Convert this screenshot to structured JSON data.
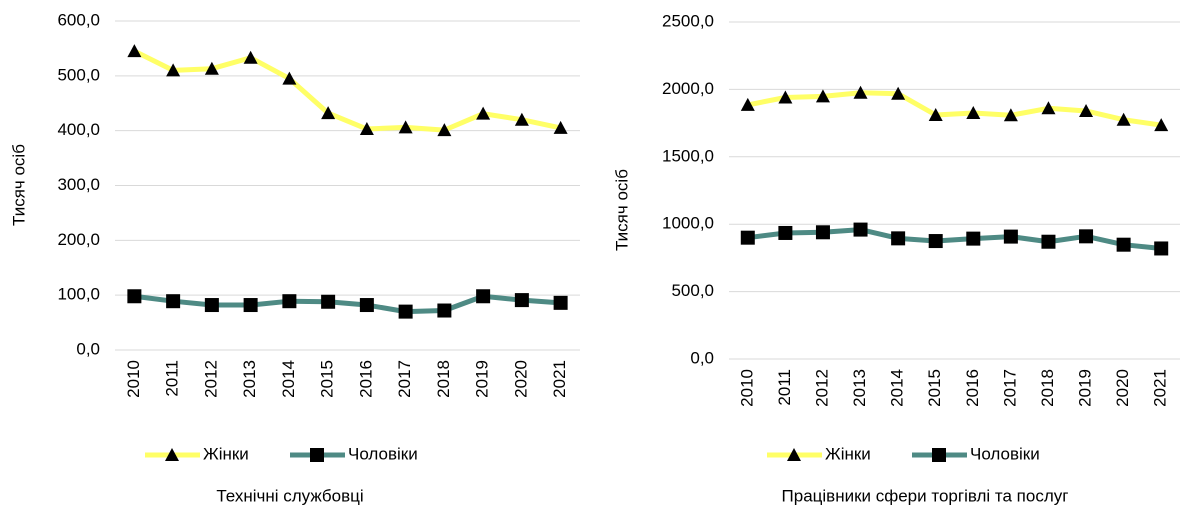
{
  "chart_data": [
    {
      "type": "line",
      "title": "Технічні службовці",
      "y_label": "Тисяч осіб",
      "categories": [
        "2010",
        "2011",
        "2012",
        "2013",
        "2014",
        "2015",
        "2016",
        "2017",
        "2018",
        "2019",
        "2020",
        "2021"
      ],
      "series": [
        {
          "name": "Жінки",
          "color": "#ffff66",
          "marker": "triangle",
          "values": [
            545,
            510,
            513,
            533,
            495,
            432,
            403,
            406,
            401,
            431,
            420,
            405
          ]
        },
        {
          "name": "Чоловіки",
          "color": "#4e8a84",
          "marker": "square",
          "values": [
            98,
            89,
            82,
            82,
            89,
            88,
            82,
            70,
            72,
            98,
            91,
            86
          ]
        }
      ],
      "ylim": [
        0,
        600
      ],
      "yticks": [
        {
          "value": 0,
          "label": "0,0"
        },
        {
          "value": 100,
          "label": "100,0"
        },
        {
          "value": 200,
          "label": "200,0"
        },
        {
          "value": 300,
          "label": "300,0"
        },
        {
          "value": 400,
          "label": "400,0"
        },
        {
          "value": 500,
          "label": "500,0"
        },
        {
          "value": 600,
          "label": "600,0"
        }
      ],
      "grid": true,
      "legend": "bottom"
    },
    {
      "type": "line",
      "title": "Працівники сфери торгівлі та послуг",
      "y_label": "Тисяч осіб",
      "categories": [
        "2010",
        "2011",
        "2012",
        "2013",
        "2014",
        "2015",
        "2016",
        "2017",
        "2018",
        "2019",
        "2020",
        "2021"
      ],
      "series": [
        {
          "name": "Жінки",
          "color": "#ffff66",
          "marker": "triangle",
          "values": [
            1885,
            1940,
            1948,
            1975,
            1968,
            1810,
            1825,
            1808,
            1860,
            1840,
            1775,
            1735
          ]
        },
        {
          "name": "Чоловіки",
          "color": "#4e8a84",
          "marker": "square",
          "values": [
            900,
            935,
            940,
            960,
            895,
            875,
            893,
            908,
            870,
            910,
            848,
            820
          ]
        }
      ],
      "ylim": [
        0,
        2500
      ],
      "yticks": [
        {
          "value": 0,
          "label": "0,0"
        },
        {
          "value": 500,
          "label": "500,0"
        },
        {
          "value": 1000,
          "label": "1000,0"
        },
        {
          "value": 1500,
          "label": "1500,0"
        },
        {
          "value": 2000,
          "label": "2000,0"
        },
        {
          "value": 2500,
          "label": "2500,0"
        }
      ],
      "grid": true,
      "legend": "bottom"
    }
  ]
}
